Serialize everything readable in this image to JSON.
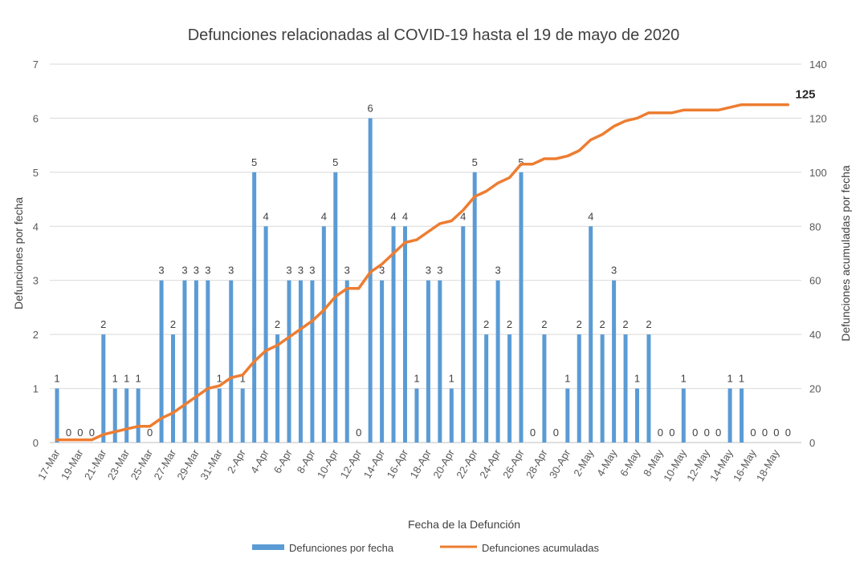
{
  "chart_data": {
    "type": "bar",
    "title": "Defunciones relacionadas al COVID-19 hasta el 19 de mayo de 2020",
    "xlabel": "Fecha de la Defunción",
    "ylabel": "Defunciones por fecha",
    "y2label": "Defunciones acumuladas por fecha",
    "ylim": [
      0,
      7
    ],
    "y2lim": [
      0,
      140
    ],
    "yticks": [
      "0",
      "1",
      "2",
      "3",
      "4",
      "5",
      "6",
      "7"
    ],
    "y2ticks": [
      "0",
      "20",
      "40",
      "60",
      "80",
      "100",
      "120",
      "140"
    ],
    "grid": true,
    "legend_position": "bottom",
    "x": [
      "17-Mar",
      "18-Mar",
      "19-Mar",
      "20-Mar",
      "21-Mar",
      "22-Mar",
      "23-Mar",
      "24-Mar",
      "25-Mar",
      "26-Mar",
      "27-Mar",
      "28-Mar",
      "29-Mar",
      "30-Mar",
      "31-Mar",
      "1-Apr",
      "2-Apr",
      "3-Apr",
      "4-Apr",
      "5-Apr",
      "6-Apr",
      "7-Apr",
      "8-Apr",
      "9-Apr",
      "10-Apr",
      "11-Apr",
      "12-Apr",
      "13-Apr",
      "14-Apr",
      "15-Apr",
      "16-Apr",
      "17-Apr",
      "18-Apr",
      "19-Apr",
      "20-Apr",
      "21-Apr",
      "22-Apr",
      "23-Apr",
      "24-Apr",
      "25-Apr",
      "26-Apr",
      "27-Apr",
      "28-Apr",
      "29-Apr",
      "30-Apr",
      "1-May",
      "2-May",
      "3-May",
      "4-May",
      "5-May",
      "6-May",
      "7-May",
      "8-May",
      "9-May",
      "10-May",
      "11-May",
      "12-May",
      "13-May",
      "14-May",
      "15-May",
      "16-May",
      "17-May",
      "18-May",
      "19-May"
    ],
    "xtick_labels": [
      "17-Mar",
      "19-Mar",
      "21-Mar",
      "23-Mar",
      "25-Mar",
      "27-Mar",
      "29-Mar",
      "31-Mar",
      "2-Apr",
      "4-Apr",
      "6-Apr",
      "8-Apr",
      "10-Apr",
      "12-Apr",
      "14-Apr",
      "16-Apr",
      "18-Apr",
      "20-Apr",
      "22-Apr",
      "24-Apr",
      "26-Apr",
      "28-Apr",
      "30-Apr",
      "2-May",
      "4-May",
      "6-May",
      "8-May",
      "10-May",
      "12-May",
      "14-May",
      "16-May",
      "18-May"
    ],
    "series": [
      {
        "name": "Defunciones por fecha",
        "type": "bar",
        "axis": "left",
        "color": "#5B9BD5",
        "values": [
          1,
          0,
          0,
          0,
          2,
          1,
          1,
          1,
          0,
          3,
          2,
          3,
          3,
          3,
          1,
          3,
          1,
          5,
          4,
          2,
          3,
          3,
          3,
          4,
          5,
          3,
          0,
          6,
          3,
          4,
          4,
          1,
          3,
          3,
          1,
          4,
          5,
          2,
          3,
          2,
          5,
          0,
          2,
          0,
          1,
          2,
          4,
          2,
          3,
          2,
          1,
          2,
          0,
          0,
          1,
          0,
          0,
          0,
          1,
          1,
          0,
          0,
          0,
          0
        ]
      },
      {
        "name": "Defunciones acumuladas",
        "type": "line",
        "axis": "right",
        "color": "#ED7D31",
        "values": [
          1,
          1,
          1,
          1,
          3,
          4,
          5,
          6,
          6,
          9,
          11,
          14,
          17,
          20,
          21,
          24,
          25,
          30,
          34,
          36,
          39,
          42,
          45,
          49,
          54,
          57,
          57,
          63,
          66,
          70,
          74,
          75,
          78,
          81,
          82,
          86,
          91,
          93,
          96,
          98,
          103,
          103,
          105,
          105,
          106,
          108,
          112,
          114,
          117,
          119,
          120,
          122,
          122,
          122,
          123,
          123,
          123,
          123,
          124,
          125,
          125,
          125,
          125,
          125
        ],
        "end_label": "125"
      }
    ]
  }
}
